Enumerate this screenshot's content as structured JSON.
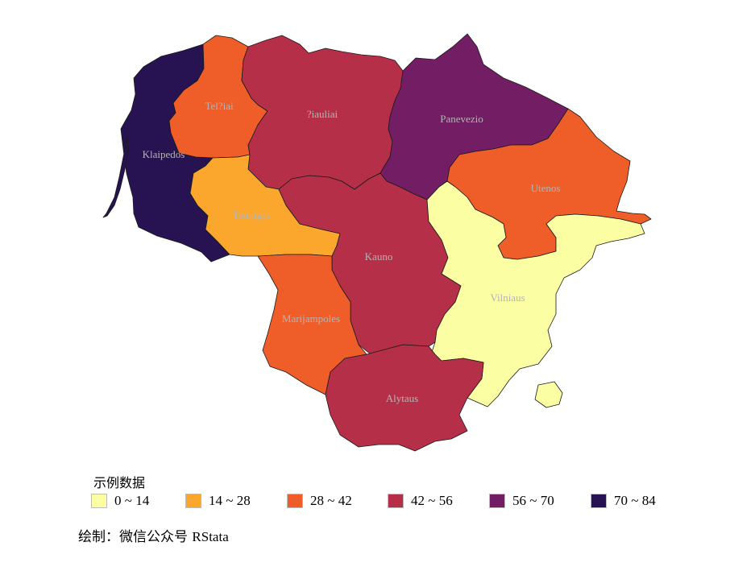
{
  "colors": {
    "class_0_14": "#fcfea4",
    "class_14_28": "#fba72d",
    "class_28_42": "#ef5e29",
    "class_42_56": "#b62f48",
    "class_56_70": "#731e64",
    "class_70_84": "#271352"
  },
  "regions": [
    {
      "name": "Klaipedos",
      "class": "70 ~ 84",
      "color": "#271352"
    },
    {
      "name": "Tel?iai",
      "class": "28 ~ 42",
      "color": "#ef5e29"
    },
    {
      "name": "?iauliai",
      "class": "42 ~ 56",
      "color": "#b62f48"
    },
    {
      "name": "Panevezio",
      "class": "56 ~ 70",
      "color": "#731e64"
    },
    {
      "name": "Utenos",
      "class": "28 ~ 42",
      "color": "#ef5e29"
    },
    {
      "name": "Taurages",
      "class": "14 ~ 28",
      "color": "#fba72d"
    },
    {
      "name": "Kauno",
      "class": "42 ~ 56",
      "color": "#b62f48"
    },
    {
      "name": "Vilniaus",
      "class": "0 ~ 14",
      "color": "#fcfea4"
    },
    {
      "name": "Marijampoles",
      "class": "28 ~ 42",
      "color": "#ef5e29"
    },
    {
      "name": "Alytaus",
      "class": "42 ~ 56",
      "color": "#b62f48"
    }
  ],
  "legend": {
    "title": "示例数据",
    "items": [
      {
        "label": "0 ~ 14",
        "color": "#fcfea4"
      },
      {
        "label": "14 ~ 28",
        "color": "#fba72d"
      },
      {
        "label": "28 ~ 42",
        "color": "#ef5e29"
      },
      {
        "label": "42 ~ 56",
        "color": "#b62f48"
      },
      {
        "label": "56 ~ 70",
        "color": "#731e64"
      },
      {
        "label": "70 ~ 84",
        "color": "#271352"
      }
    ]
  },
  "caption": {
    "prefix": "绘制：微信公众号",
    "brand": "RStata"
  }
}
